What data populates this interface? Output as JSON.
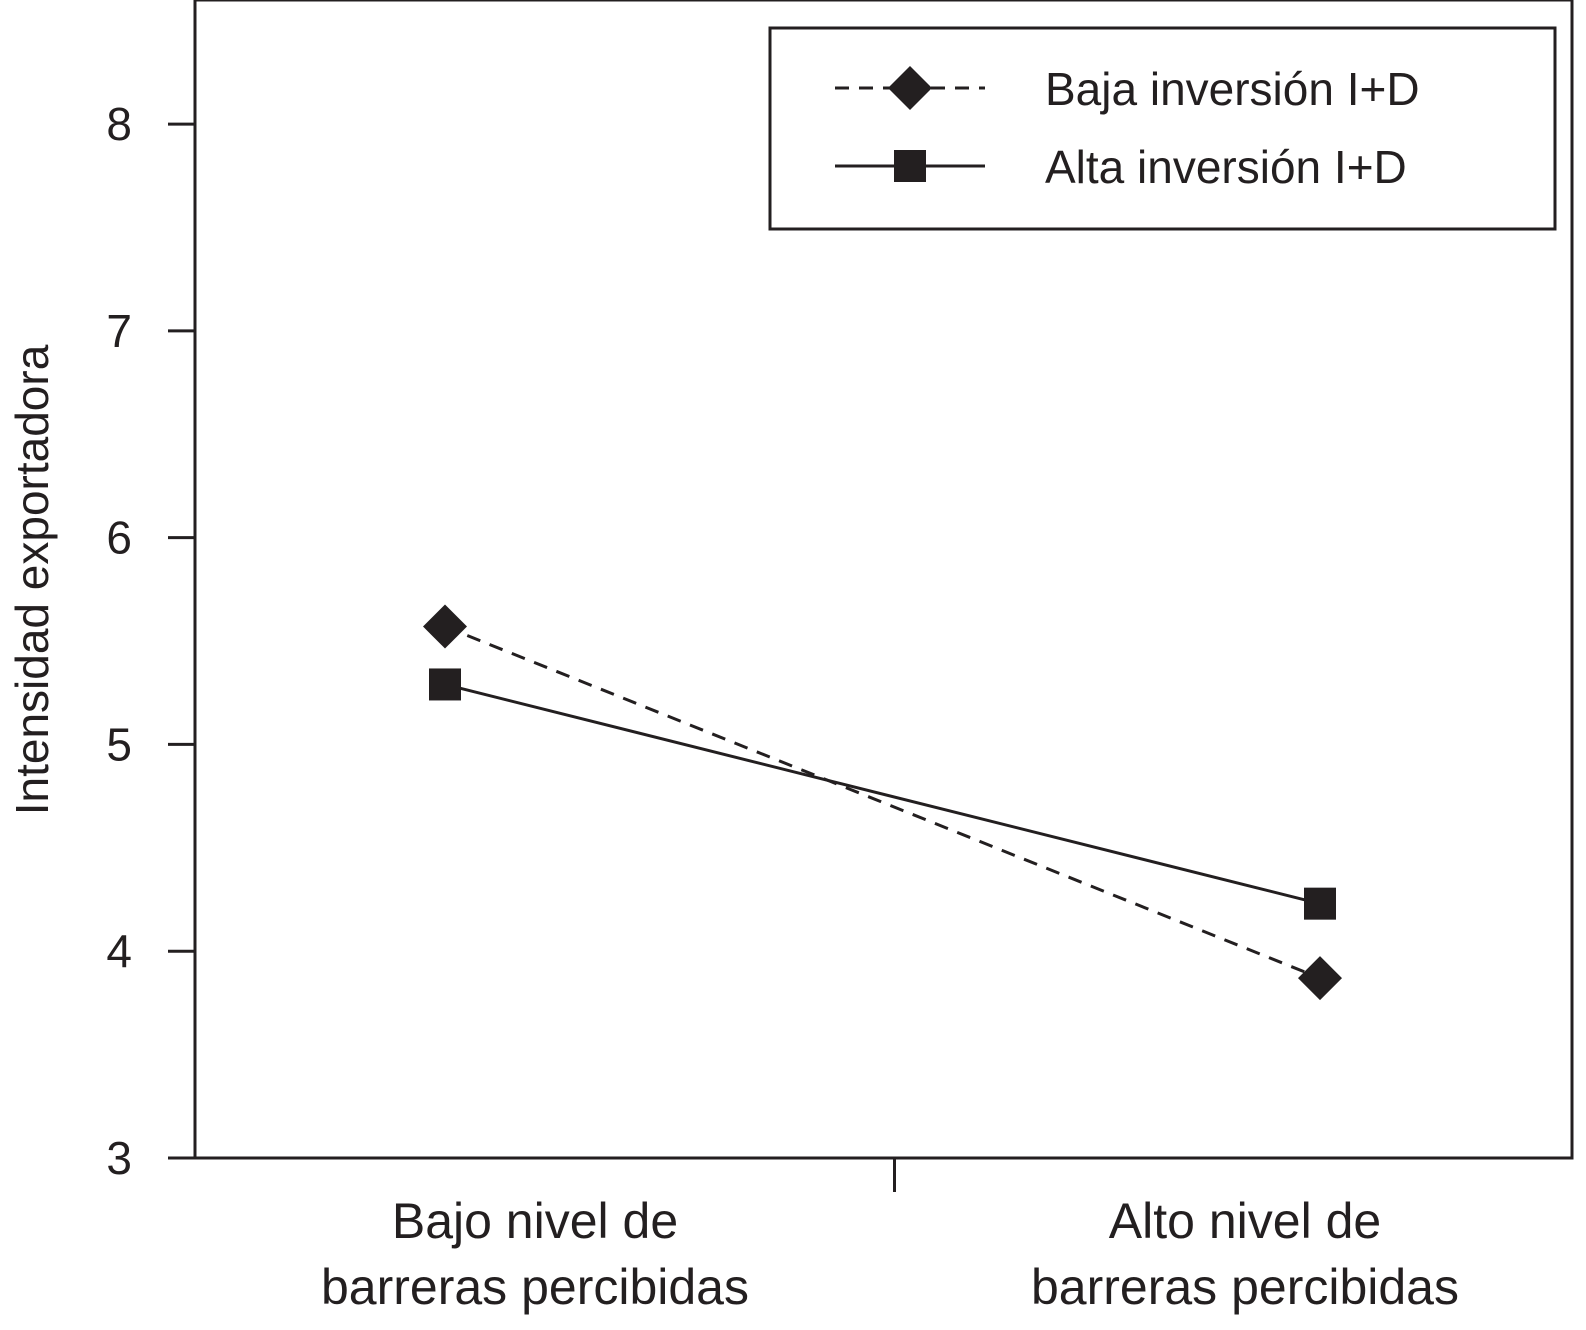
{
  "chart_data": {
    "type": "line",
    "title": "",
    "xlabel": "",
    "ylabel": "Intensidad exportadora",
    "categories": [
      [
        "Bajo nivel de",
        "barreras percibidas"
      ],
      [
        "Alto nivel de",
        "barreras percibidas"
      ]
    ],
    "ylim": [
      3,
      8.6
    ],
    "yticks": [
      3,
      4,
      5,
      6,
      7,
      8
    ],
    "grid": false,
    "legend_position": "top-right",
    "series": [
      {
        "name": "Baja inversión I+D",
        "values": [
          5.57,
          3.87
        ],
        "marker": "diamond",
        "line": "dashed",
        "color": "#231f20"
      },
      {
        "name": "Alta inversión I+D",
        "values": [
          5.29,
          4.23
        ],
        "marker": "square",
        "line": "solid",
        "color": "#231f20"
      }
    ]
  }
}
